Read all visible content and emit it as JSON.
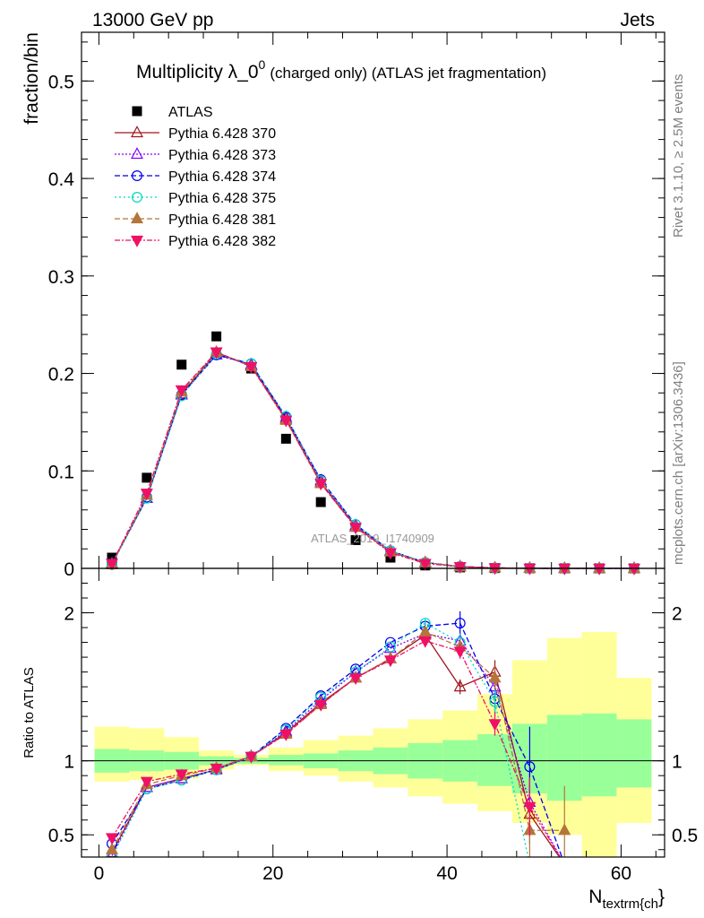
{
  "header": {
    "energy": "13000 GeV pp",
    "category": "Jets"
  },
  "side": {
    "rivet": "Rivet 3.1.10, ≥ 2.5M events",
    "mcplots": "mcplots.cern.ch [arXiv:1306.3436]"
  },
  "watermark": "ATLAS_2019_I1740909",
  "colors": {
    "band_inner": "#99ff99",
    "band_outer": "#ffff99"
  },
  "chart_data": [
    {
      "type": "scatter",
      "title_main": "Multiplicity λ_0",
      "title_sup": "0",
      "title_rest": "(charged only) (ATLAS jet fragmentation)",
      "ylabel": "fraction/bin",
      "xlim": [
        -2,
        65
      ],
      "ylim": [
        0,
        0.55
      ],
      "yticks": [
        0,
        0.1,
        0.2,
        0.3,
        0.4,
        0.5
      ],
      "ytick_labels": [
        "0",
        "0.1",
        "0.2",
        "0.3",
        "0.4",
        "0.5"
      ],
      "x": [
        1.5,
        5.5,
        9.5,
        13.5,
        17.5,
        21.5,
        25.5,
        29.5,
        33.5,
        37.5,
        41.5,
        45.5,
        49.5,
        53.5,
        57.5,
        61.5
      ],
      "series": [
        {
          "name": "ATLAS",
          "color": "#000000",
          "marker": "square",
          "dash": "",
          "values": [
            0.011,
            0.093,
            0.209,
            0.238,
            0.205,
            0.133,
            0.068,
            0.029,
            0.011,
            0.003,
            0.001,
            0.0003,
            0.0001,
            5e-05,
            2e-05,
            1e-05
          ]
        },
        {
          "name": "Pythia 6.428 370",
          "color": "#a0141e",
          "marker": "triangle-open",
          "dash": "",
          "values": [
            0.005,
            0.072,
            0.179,
            0.221,
            0.208,
            0.153,
            0.088,
            0.043,
            0.017,
            0.006,
            0.0018,
            0.0005,
            0.0001,
            3e-05,
            1e-05,
            3e-06
          ]
        },
        {
          "name": "Pythia 6.428 373",
          "color": "#7f00ff",
          "marker": "triangle-open",
          "dash": "2,2",
          "values": [
            0.004,
            0.072,
            0.178,
            0.219,
            0.209,
            0.155,
            0.09,
            0.044,
            0.018,
            0.006,
            0.0018,
            0.0005,
            0.0001,
            3e-05,
            1e-05,
            3e-06
          ]
        },
        {
          "name": "Pythia 6.428 374",
          "color": "#0000ee",
          "marker": "circle-open",
          "dash": "6,3",
          "values": [
            0.005,
            0.073,
            0.178,
            0.219,
            0.21,
            0.155,
            0.091,
            0.045,
            0.018,
            0.006,
            0.0019,
            0.0005,
            0.0001,
            3e-05,
            1e-05,
            3e-06
          ]
        },
        {
          "name": "Pythia 6.428 375",
          "color": "#00d8c0",
          "marker": "circle-open",
          "dash": "2,3",
          "values": [
            0.004,
            0.072,
            0.177,
            0.22,
            0.21,
            0.156,
            0.09,
            0.045,
            0.018,
            0.006,
            0.0018,
            0.0005,
            0.0001,
            3e-05,
            1e-05,
            3e-06
          ]
        },
        {
          "name": "Pythia 6.428 381",
          "color": "#b5753a",
          "marker": "triangle-filled",
          "dash": "6,3",
          "values": [
            0.004,
            0.075,
            0.181,
            0.222,
            0.207,
            0.152,
            0.087,
            0.042,
            0.017,
            0.006,
            0.0017,
            0.0005,
            0.0001,
            3e-05,
            1e-05,
            3e-06
          ]
        },
        {
          "name": "Pythia 6.428 382",
          "color": "#ee1166",
          "marker": "triangle-down-filled",
          "dash": "6,2,2,2",
          "values": [
            0.005,
            0.077,
            0.183,
            0.222,
            0.207,
            0.152,
            0.087,
            0.042,
            0.016,
            0.005,
            0.0017,
            0.0005,
            0.0001,
            3e-05,
            1e-05,
            3e-06
          ]
        }
      ]
    },
    {
      "type": "scatter",
      "ylabel": "Ratio to ATLAS",
      "xlabel_main": "N",
      "xlabel_sub": "textrm{ch",
      "xlabel_brace": "}",
      "xlim": [
        -2,
        65
      ],
      "ylim": [
        0.35,
        2.3
      ],
      "yticks": [
        0.5,
        1,
        2
      ],
      "ytick_labels": [
        "0.5",
        "1",
        "2"
      ],
      "xticks": [
        0,
        20,
        40,
        60
      ],
      "xtick_labels": [
        "0",
        "20",
        "40",
        "60"
      ],
      "bins": [
        [
          -0.5,
          3.5
        ],
        [
          3.5,
          7.5
        ],
        [
          7.5,
          11.5
        ],
        [
          11.5,
          15.5
        ],
        [
          15.5,
          19.5
        ],
        [
          19.5,
          23.5
        ],
        [
          23.5,
          27.5
        ],
        [
          27.5,
          31.5
        ],
        [
          31.5,
          35.5
        ],
        [
          35.5,
          39.5
        ],
        [
          39.5,
          43.5
        ],
        [
          43.5,
          47.5
        ],
        [
          47.5,
          51.5
        ],
        [
          51.5,
          55.5
        ],
        [
          55.5,
          59.5
        ],
        [
          59.5,
          63.5
        ]
      ],
      "band_inner": [
        [
          0.92,
          1.08
        ],
        [
          0.93,
          1.07
        ],
        [
          0.94,
          1.06
        ],
        [
          0.97,
          1.03
        ],
        [
          0.98,
          1.02
        ],
        [
          0.97,
          1.04
        ],
        [
          0.95,
          1.05
        ],
        [
          0.93,
          1.07
        ],
        [
          0.91,
          1.09
        ],
        [
          0.88,
          1.12
        ],
        [
          0.86,
          1.14
        ],
        [
          0.83,
          1.18
        ],
        [
          0.78,
          1.25
        ],
        [
          0.73,
          1.31
        ],
        [
          0.76,
          1.32
        ],
        [
          0.82,
          1.28
        ]
      ],
      "band_outer": [
        [
          0.86,
          1.23
        ],
        [
          0.87,
          1.22
        ],
        [
          0.88,
          1.16
        ],
        [
          0.94,
          1.07
        ],
        [
          0.97,
          1.04
        ],
        [
          0.93,
          1.09
        ],
        [
          0.9,
          1.14
        ],
        [
          0.86,
          1.17
        ],
        [
          0.82,
          1.22
        ],
        [
          0.76,
          1.28
        ],
        [
          0.71,
          1.34
        ],
        [
          0.66,
          1.45
        ],
        [
          0.58,
          1.68
        ],
        [
          0.5,
          1.83
        ],
        [
          0.35,
          1.87
        ],
        [
          0.58,
          1.56
        ]
      ],
      "x": [
        1.5,
        5.5,
        9.5,
        13.5,
        17.5,
        21.5,
        25.5,
        29.5,
        33.5,
        37.5,
        41.5,
        45.5,
        49.5,
        53.5
      ],
      "series": [
        {
          "name": "Pythia 6.428 370",
          "color": "#a0141e",
          "marker": "triangle-open",
          "dash": "",
          "values": [
            0.38,
            0.82,
            0.88,
            0.94,
            1.03,
            1.19,
            1.39,
            1.56,
            1.69,
            1.85,
            1.5,
            1.6,
            0.64,
            0.3
          ],
          "errors": [
            0,
            0,
            0,
            0,
            0,
            0,
            0,
            0,
            0,
            0.03,
            0.05,
            0.08,
            0.2,
            0
          ]
        },
        {
          "name": "Pythia 6.428 373",
          "color": "#7f00ff",
          "marker": "triangle-open",
          "dash": "2,2",
          "values": [
            0.36,
            0.82,
            0.88,
            0.94,
            1.03,
            1.2,
            1.41,
            1.6,
            1.76,
            1.86,
            1.81,
            1.5,
            0.72,
            0.3
          ],
          "errors": [
            0,
            0,
            0,
            0,
            0,
            0,
            0,
            0,
            0,
            0.03,
            0.05,
            0.08,
            0.2,
            0
          ]
        },
        {
          "name": "Pythia 6.428 374",
          "color": "#0000ee",
          "marker": "circle-open",
          "dash": "6,3",
          "values": [
            0.44,
            0.81,
            0.87,
            0.94,
            1.03,
            1.22,
            1.44,
            1.62,
            1.8,
            1.91,
            1.93,
            1.42,
            0.96,
            0.3
          ],
          "errors": [
            0,
            0,
            0,
            0,
            0,
            0,
            0,
            0,
            0,
            0.03,
            0.08,
            0.1,
            0.27,
            0
          ]
        },
        {
          "name": "Pythia 6.428 375",
          "color": "#00d8c0",
          "marker": "circle-open",
          "dash": "2,3",
          "values": [
            0.35,
            0.81,
            0.87,
            0.94,
            1.03,
            1.21,
            1.43,
            1.6,
            1.77,
            1.93,
            1.8,
            1.4,
            0.3,
            0.3
          ],
          "errors": [
            0,
            0,
            0,
            0,
            0,
            0,
            0,
            0,
            0,
            0.03,
            0.06,
            0.1,
            0,
            0
          ]
        },
        {
          "name": "Pythia 6.428 381",
          "color": "#b5753a",
          "marker": "triangle-filled",
          "dash": "6,3",
          "values": [
            0.4,
            0.84,
            0.9,
            0.95,
            1.03,
            1.18,
            1.38,
            1.56,
            1.69,
            1.87,
            1.77,
            1.56,
            0.53,
            0.53
          ],
          "errors": [
            0,
            0,
            0,
            0,
            0,
            0,
            0,
            0,
            0,
            0.03,
            0.05,
            0.08,
            0.2,
            0.3
          ]
        },
        {
          "name": "Pythia 6.428 382",
          "color": "#ee1166",
          "marker": "triangle-down-filled",
          "dash": "6,2,2,2",
          "values": [
            0.48,
            0.86,
            0.91,
            0.95,
            1.03,
            1.18,
            1.38,
            1.56,
            1.68,
            1.81,
            1.74,
            1.25,
            0.69,
            0.3
          ],
          "errors": [
            0,
            0,
            0,
            0,
            0,
            0,
            0,
            0,
            0,
            0.03,
            0.05,
            0.08,
            0.2,
            0
          ]
        }
      ]
    }
  ]
}
